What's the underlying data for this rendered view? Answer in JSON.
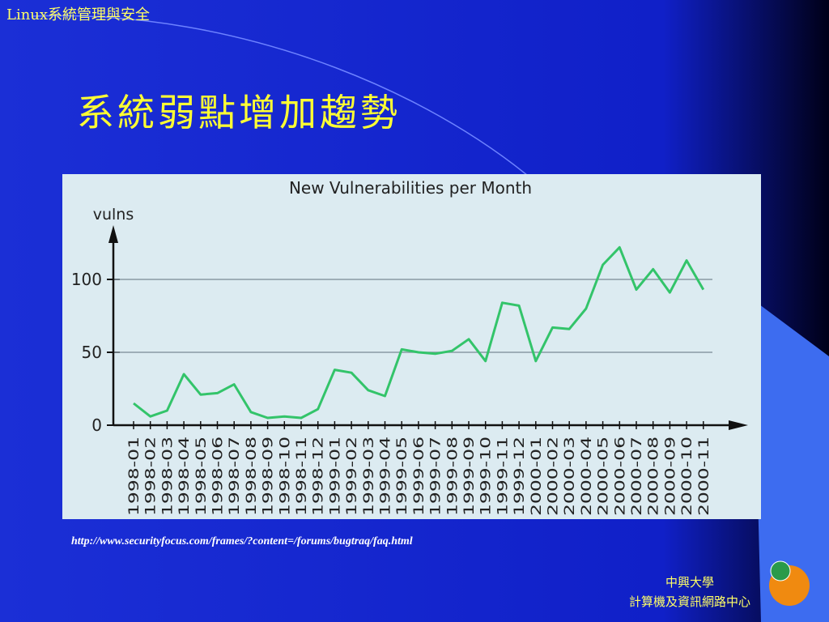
{
  "header": "Linux系統管理與安全",
  "slide_title": "系統弱點增加趨勢",
  "source_url": "http://www.securityfocus.com/frames/?content=/forums/bugtraq/faq.html",
  "footer": [
    "中興大學",
    "計算機及資訊網路中心"
  ],
  "chart_data": {
    "type": "line",
    "title": "New Vulnerabilities per Month",
    "y_label": "vulns",
    "categories": [
      "1998-01",
      "1998-02",
      "1998-03",
      "1998-04",
      "1998-05",
      "1998-06",
      "1998-07",
      "1998-08",
      "1998-09",
      "1998-10",
      "1998-11",
      "1998-12",
      "1999-01",
      "1999-02",
      "1999-03",
      "1999-04",
      "1999-05",
      "1999-06",
      "1999-07",
      "1999-08",
      "1999-09",
      "1999-10",
      "1999-11",
      "1999-12",
      "2000-01",
      "2000-02",
      "2000-03",
      "2000-04",
      "2000-05",
      "2000-06",
      "2000-07",
      "2000-08",
      "2000-09",
      "2000-10",
      "2000-11"
    ],
    "values": [
      15,
      6,
      10,
      35,
      21,
      22,
      28,
      9,
      5,
      6,
      5,
      11,
      38,
      36,
      24,
      20,
      52,
      50,
      49,
      51,
      59,
      44,
      84,
      82,
      44,
      67,
      66,
      80,
      110,
      122,
      93,
      107,
      91,
      113,
      93
    ],
    "color": "#33c46a",
    "ylim": [
      0,
      135
    ],
    "yticks": [
      0,
      50,
      100
    ],
    "grid": true
  }
}
